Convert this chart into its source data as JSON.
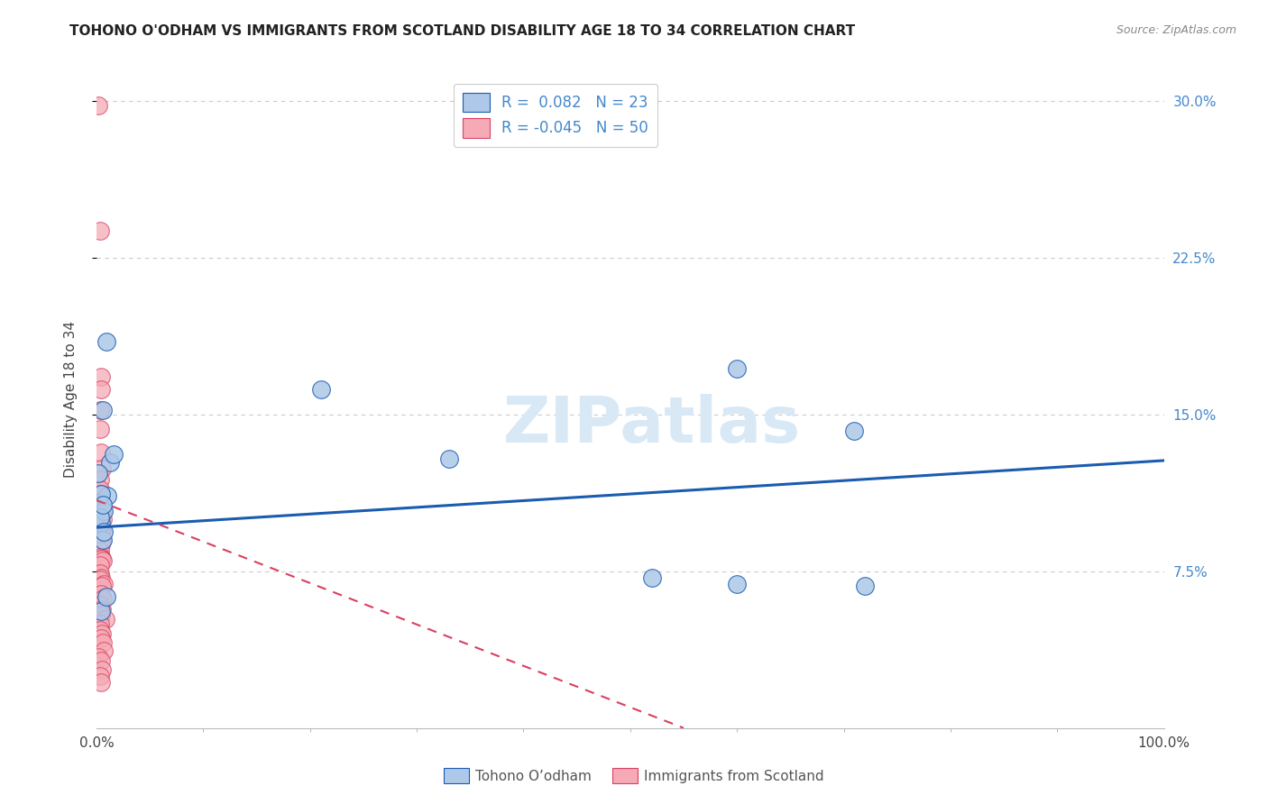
{
  "title": "TOHONO O'ODHAM VS IMMIGRANTS FROM SCOTLAND DISABILITY AGE 18 TO 34 CORRELATION CHART",
  "source": "Source: ZipAtlas.com",
  "ylabel": "Disability Age 18 to 34",
  "xlabel": "",
  "legend_label_1": "Tohono O’odham",
  "legend_label_2": "Immigrants from Scotland",
  "R1": 0.082,
  "N1": 23,
  "R2": -0.045,
  "N2": 50,
  "color1": "#adc8e8",
  "color2": "#f5aab5",
  "line_color1": "#1a5cb0",
  "line_color2": "#d94060",
  "xlim": [
    0.0,
    1.0
  ],
  "ylim": [
    0.0,
    0.315
  ],
  "yticks": [
    0.075,
    0.15,
    0.225,
    0.3
  ],
  "ytick_labels": [
    "7.5%",
    "15.0%",
    "22.5%",
    "30.0%"
  ],
  "blue_x": [
    0.004,
    0.009,
    0.006,
    0.013,
    0.016,
    0.01,
    0.004,
    0.006,
    0.002,
    0.21,
    0.33,
    0.6,
    0.71,
    0.52,
    0.004,
    0.007,
    0.003,
    0.004,
    0.006,
    0.007,
    0.009,
    0.6,
    0.72
  ],
  "blue_y": [
    0.108,
    0.185,
    0.152,
    0.127,
    0.131,
    0.111,
    0.098,
    0.09,
    0.122,
    0.162,
    0.129,
    0.172,
    0.142,
    0.072,
    0.056,
    0.104,
    0.101,
    0.112,
    0.107,
    0.094,
    0.063,
    0.069,
    0.068
  ],
  "pink_x": [
    0.002,
    0.003,
    0.004,
    0.004,
    0.003,
    0.003,
    0.004,
    0.005,
    0.003,
    0.003,
    0.004,
    0.003,
    0.003,
    0.005,
    0.004,
    0.006,
    0.003,
    0.005,
    0.004,
    0.004,
    0.005,
    0.004,
    0.003,
    0.004,
    0.005,
    0.004,
    0.006,
    0.003,
    0.003,
    0.004,
    0.003,
    0.007,
    0.005,
    0.004,
    0.006,
    0.003,
    0.005,
    0.004,
    0.008,
    0.003,
    0.003,
    0.005,
    0.004,
    0.006,
    0.007,
    0.002,
    0.004,
    0.005,
    0.003,
    0.004
  ],
  "pink_y": [
    0.298,
    0.238,
    0.168,
    0.162,
    0.152,
    0.143,
    0.132,
    0.124,
    0.119,
    0.114,
    0.112,
    0.108,
    0.107,
    0.104,
    0.101,
    0.1,
    0.098,
    0.095,
    0.094,
    0.091,
    0.09,
    0.088,
    0.085,
    0.082,
    0.081,
    0.081,
    0.08,
    0.078,
    0.074,
    0.072,
    0.071,
    0.069,
    0.068,
    0.064,
    0.062,
    0.059,
    0.057,
    0.054,
    0.052,
    0.05,
    0.047,
    0.045,
    0.043,
    0.041,
    0.037,
    0.034,
    0.032,
    0.028,
    0.025,
    0.022
  ],
  "blue_line_x0": 0.0,
  "blue_line_x1": 1.0,
  "blue_line_y0": 0.096,
  "blue_line_y1": 0.128,
  "pink_line_x0": 0.0,
  "pink_line_x1": 0.55,
  "pink_line_y0": 0.109,
  "pink_line_y1": 0.0,
  "background_color": "#ffffff",
  "grid_color": "#cccccc",
  "title_fontsize": 11,
  "axis_fontsize": 10,
  "tick_fontsize": 10,
  "right_tick_color": "#4488cc",
  "watermark_text": "ZIPatlas",
  "watermark_color": "#d8e8f5"
}
